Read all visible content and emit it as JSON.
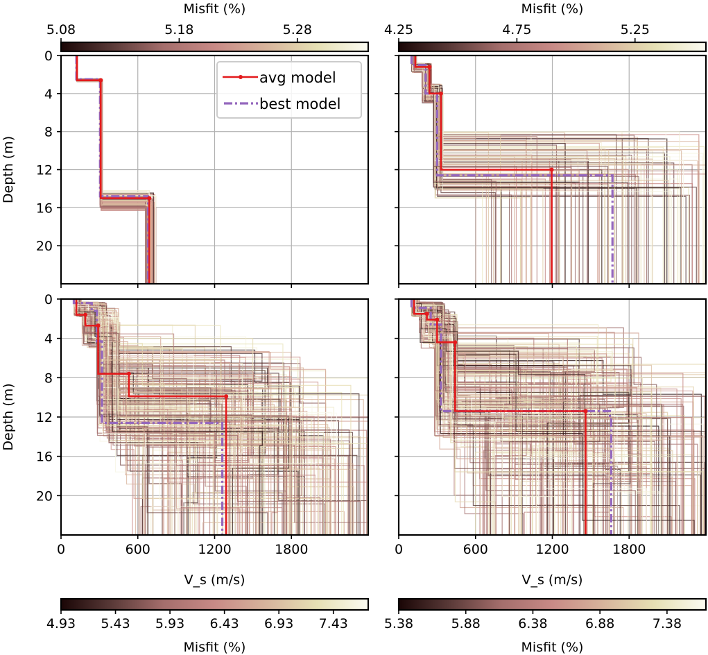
{
  "chart_data": [
    {
      "id": "top-left",
      "type": "line",
      "xlabel": "",
      "ylabel": "Depth (m)",
      "xlim": [
        0,
        2400
      ],
      "ylim": [
        24,
        0
      ],
      "xticks": [
        0,
        600,
        1200,
        1800
      ],
      "xticklabels": [
        "",
        "",
        "",
        ""
      ],
      "yticks": [
        0,
        4,
        8,
        12,
        16,
        20
      ],
      "yticklabels": [
        "0",
        "4",
        "8",
        "12",
        "16",
        "20"
      ],
      "grid": true,
      "legend": {
        "placement": "top-right",
        "entries": [
          "avg model",
          "best model"
        ]
      },
      "colorbar": {
        "placement": "top",
        "label": "Misfit (%)",
        "ticks": [
          "5.08",
          "5.18",
          "5.28"
        ],
        "range": [
          5.08,
          5.34
        ]
      },
      "ensemble": {
        "count": 40,
        "spread": "narrow",
        "vs_ranges": [
          [
            120,
            130
          ],
          [
            300,
            320
          ],
          [
            650,
            740
          ]
        ],
        "interfaces": [
          2.6,
          15.0
        ]
      },
      "avg_model": {
        "depth": [
          0,
          2.6,
          2.6,
          15.0,
          15.0,
          24
        ],
        "vs": [
          125,
          125,
          310,
          310,
          690,
          690
        ]
      },
      "best_model": {
        "depth": [
          0,
          2.5,
          2.5,
          14.8,
          14.8,
          24
        ],
        "vs": [
          120,
          120,
          305,
          305,
          680,
          680
        ]
      }
    },
    {
      "id": "top-right",
      "type": "line",
      "xlabel": "",
      "ylabel": "",
      "xlim": [
        0,
        2400
      ],
      "ylim": [
        24,
        0
      ],
      "xticks": [
        0,
        600,
        1200,
        1800
      ],
      "xticklabels": [
        "",
        "",
        "",
        ""
      ],
      "yticks": [
        0,
        4,
        8,
        12,
        16,
        20
      ],
      "yticklabels": [
        "",
        "",
        "",
        "",
        "",
        ""
      ],
      "grid": true,
      "colorbar": {
        "placement": "top",
        "label": "Misfit (%)",
        "ticks": [
          "4.25",
          "4.75",
          "5.25"
        ],
        "range": [
          4.25,
          5.55
        ]
      },
      "ensemble": {
        "count": 120,
        "spread": "wide-halfspace",
        "vs_ranges": [
          [
            100,
            140
          ],
          [
            180,
            260
          ],
          [
            280,
            340
          ],
          [
            500,
            2400
          ]
        ],
        "interfaces": [
          1.2,
          4.0,
          12.0
        ]
      },
      "avg_model": {
        "depth": [
          0,
          1.2,
          1.2,
          4.0,
          4.0,
          12.0,
          12.0,
          24
        ],
        "vs": [
          130,
          130,
          240,
          240,
          330,
          330,
          1195,
          1195
        ]
      },
      "best_model": {
        "depth": [
          0,
          1.0,
          1.0,
          4.0,
          4.0,
          12.6,
          12.6,
          24
        ],
        "vs": [
          100,
          100,
          210,
          210,
          300,
          300,
          1670,
          1670
        ]
      }
    },
    {
      "id": "bottom-left",
      "type": "line",
      "xlabel": "V_s (m/s)",
      "ylabel": "Depth (m)",
      "xlim": [
        0,
        2400
      ],
      "ylim": [
        24,
        0
      ],
      "xticks": [
        0,
        600,
        1200,
        1800
      ],
      "xticklabels": [
        "0",
        "600",
        "1200",
        "1800"
      ],
      "yticks": [
        0,
        4,
        8,
        12,
        16,
        20
      ],
      "yticklabels": [
        "0",
        "4",
        "8",
        "12",
        "16",
        "20"
      ],
      "grid": true,
      "colorbar": {
        "placement": "bottom",
        "label": "Misfit (%)",
        "ticks": [
          "4.93",
          "5.43",
          "5.93",
          "6.43",
          "6.93",
          "7.43"
        ],
        "range": [
          4.93,
          7.75
        ]
      },
      "ensemble": {
        "count": 220,
        "spread": "very-wide"
      },
      "avg_model": {
        "depth": [
          0,
          1.6,
          1.6,
          2.7,
          2.7,
          7.6,
          7.6,
          9.9,
          9.9,
          24
        ],
        "vs": [
          120,
          120,
          190,
          190,
          290,
          290,
          530,
          530,
          1290,
          1290
        ]
      },
      "best_model": {
        "depth": [
          0,
          0.4,
          0.4,
          1.2,
          1.2,
          4.3,
          4.3,
          12.6,
          12.6,
          24
        ],
        "vs": [
          100,
          100,
          240,
          240,
          280,
          280,
          320,
          320,
          1260,
          1260
        ]
      }
    },
    {
      "id": "bottom-right",
      "type": "line",
      "xlabel": "V_s (m/s)",
      "ylabel": "",
      "xlim": [
        0,
        2400
      ],
      "ylim": [
        24,
        0
      ],
      "xticks": [
        0,
        600,
        1200,
        1800
      ],
      "xticklabels": [
        "0",
        "600",
        "1200",
        "1800"
      ],
      "yticks": [
        0,
        4,
        8,
        12,
        16,
        20
      ],
      "yticklabels": [
        "",
        "",
        "",
        "",
        "",
        ""
      ],
      "grid": true,
      "colorbar": {
        "placement": "bottom",
        "label": "Misfit (%)",
        "ticks": [
          "5.38",
          "5.88",
          "6.38",
          "6.88",
          "7.38"
        ],
        "range": [
          5.38,
          7.67
        ]
      },
      "ensemble": {
        "count": 220,
        "spread": "very-wide"
      },
      "avg_model": {
        "depth": [
          0,
          1.5,
          1.5,
          2.1,
          2.1,
          4.4,
          4.4,
          11.4,
          11.4,
          24
        ],
        "vs": [
          120,
          120,
          220,
          220,
          300,
          300,
          440,
          440,
          1460,
          1460
        ]
      },
      "best_model": {
        "depth": [
          0,
          0.9,
          0.9,
          2.6,
          2.6,
          11.4,
          11.4,
          12.0,
          12.0,
          24
        ],
        "vs": [
          100,
          100,
          250,
          250,
          330,
          330,
          1650,
          1650,
          1660,
          1660
        ]
      }
    }
  ],
  "legend": {
    "avg_label": "avg model",
    "best_label": "best model"
  },
  "colors": {
    "avg": "#e31a1c",
    "best": "#9467bd",
    "grid": "#b0b0b0",
    "cmap": [
      "#1a0606",
      "#5a3a38",
      "#a46e6c",
      "#c88a86",
      "#d7b49c",
      "#e6e0b4",
      "#fbfbf2"
    ]
  }
}
